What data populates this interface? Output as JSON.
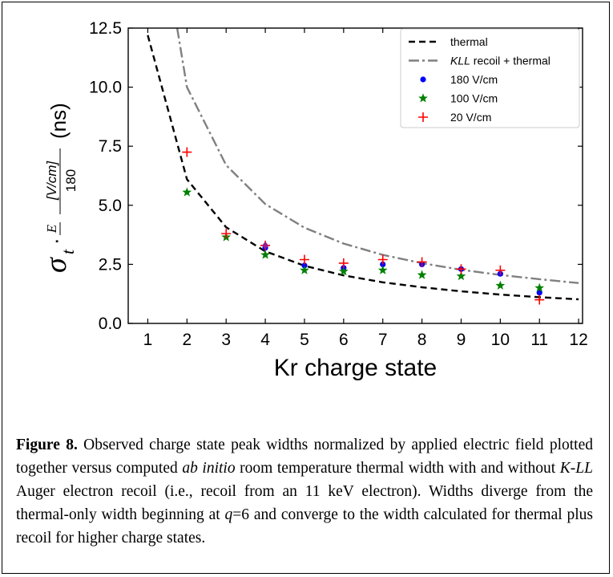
{
  "chart_data": {
    "type": "scatter",
    "xlabel": "Kr charge state",
    "ylabel_parts": {
      "sigma": "σ",
      "sub": "t",
      "dot": "·",
      "E": "E",
      "num": "[V/cm]",
      "den": "180",
      "units": "(ns)"
    },
    "xlim": [
      0.5,
      12.1
    ],
    "ylim": [
      0,
      12.5
    ],
    "xticks": [
      1,
      2,
      3,
      4,
      5,
      6,
      7,
      8,
      9,
      10,
      11,
      12
    ],
    "yticks": [
      0.0,
      2.5,
      5.0,
      7.5,
      10.0,
      12.5
    ],
    "ytick_labels": [
      "0.0",
      "2.5",
      "5.0",
      "7.5",
      "10.0",
      "12.5"
    ],
    "legend_position": "top-right",
    "series": [
      {
        "name": "thermal",
        "kind": "line",
        "style": "dashed",
        "color": "#000000",
        "x": [
          1,
          2,
          3,
          4,
          5,
          6,
          7,
          8,
          9,
          10,
          11,
          12
        ],
        "y": [
          12.2,
          6.1,
          4.07,
          3.05,
          2.44,
          2.03,
          1.74,
          1.53,
          1.36,
          1.22,
          1.11,
          1.02
        ]
      },
      {
        "name_italic": "KLL",
        "name": " recoil + thermal",
        "kind": "line",
        "style": "dashdot",
        "color": "#808080",
        "x": [
          1.75,
          2,
          3,
          4,
          5,
          6,
          7,
          8,
          9,
          10,
          11,
          12
        ],
        "y": [
          12.5,
          10.0,
          6.7,
          5.05,
          4.05,
          3.38,
          2.9,
          2.55,
          2.27,
          2.05,
          1.87,
          1.71
        ]
      },
      {
        "name": "180 V/cm",
        "kind": "points",
        "marker": "circle",
        "color": "#0000ff",
        "x": [
          4,
          5,
          6,
          7,
          8,
          9,
          10,
          11
        ],
        "y": [
          3.2,
          2.45,
          2.35,
          2.5,
          2.5,
          2.3,
          2.1,
          1.3
        ]
      },
      {
        "name": "100 V/cm",
        "kind": "points",
        "marker": "star",
        "color": "#008000",
        "x": [
          2,
          3,
          4,
          5,
          6,
          7,
          8,
          9,
          10,
          11
        ],
        "y": [
          5.55,
          3.65,
          2.9,
          2.25,
          2.2,
          2.25,
          2.05,
          2.0,
          1.6,
          1.5
        ]
      },
      {
        "name": "20 V/cm",
        "kind": "points",
        "marker": "plus",
        "color": "#ff0000",
        "x": [
          2,
          3,
          4,
          5,
          6,
          7,
          8,
          9,
          10,
          11
        ],
        "y": [
          7.25,
          3.8,
          3.3,
          2.7,
          2.55,
          2.7,
          2.6,
          2.3,
          2.25,
          1.0
        ]
      }
    ],
    "extra_points": [
      {
        "x": 4,
        "y": 3.3,
        "marker": "diamond",
        "color": "#9b1d87"
      }
    ]
  },
  "caption": {
    "label": "Figure 8.",
    "seg1": " Observed charge state peak widths normalized by applied electric field plotted together versus computed ",
    "italic1": "ab initio",
    "seg2": " room temperature thermal width with and without ",
    "italic2": "K-LL",
    "seg3": " Auger electron recoil (i.e., recoil from an 11 keV electron). Widths diverge from the thermal-only width beginning at ",
    "italic3": "q",
    "seg4": "=6 and converge to the width calculated for thermal plus recoil for higher charge states."
  }
}
